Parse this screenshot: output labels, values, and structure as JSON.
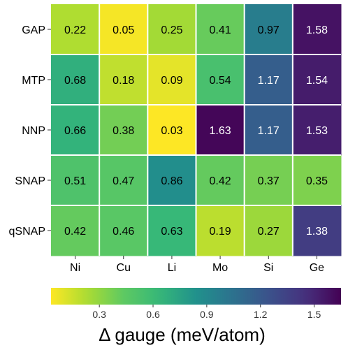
{
  "chart_data": {
    "type": "heatmap",
    "title": "",
    "rows": [
      "GAP",
      "MTP",
      "NNP",
      "SNAP",
      "qSNAP"
    ],
    "columns": [
      "Ni",
      "Cu",
      "Li",
      "Mo",
      "Si",
      "Ge"
    ],
    "values": [
      [
        0.22,
        0.05,
        0.25,
        0.41,
        0.97,
        1.58
      ],
      [
        0.68,
        0.18,
        0.09,
        0.54,
        1.17,
        1.54
      ],
      [
        0.66,
        0.38,
        0.03,
        1.63,
        1.17,
        1.53
      ],
      [
        0.51,
        0.47,
        0.86,
        0.42,
        0.37,
        0.35
      ],
      [
        0.42,
        0.46,
        0.63,
        0.19,
        0.27,
        1.38
      ]
    ],
    "value_labels": [
      [
        "0.22",
        "0.05",
        "0.25",
        "0.41",
        "0.97",
        "1.58"
      ],
      [
        "0.68",
        "0.18",
        "0.09",
        "0.54",
        "1.17",
        "1.54"
      ],
      [
        "0.66",
        "0.38",
        "0.03",
        "1.63",
        "1.17",
        "1.53"
      ],
      [
        "0.51",
        "0.47",
        "0.86",
        "0.42",
        "0.37",
        "0.35"
      ],
      [
        "0.42",
        "0.46",
        "0.63",
        "0.19",
        "0.27",
        "1.38"
      ]
    ],
    "colormap": "viridis (reversed)",
    "color_range": [
      0.03,
      1.65
    ],
    "colorbar": {
      "ticks": [
        0.3,
        0.6,
        0.9,
        1.2,
        1.5
      ],
      "tick_labels": [
        "0.3",
        "0.6",
        "0.9",
        "1.2",
        "1.5"
      ],
      "title": "Δ gauge (meV/atom)",
      "placement": "bottom"
    },
    "text_color_light": "#ffffff",
    "text_color_dark": "#000000"
  }
}
